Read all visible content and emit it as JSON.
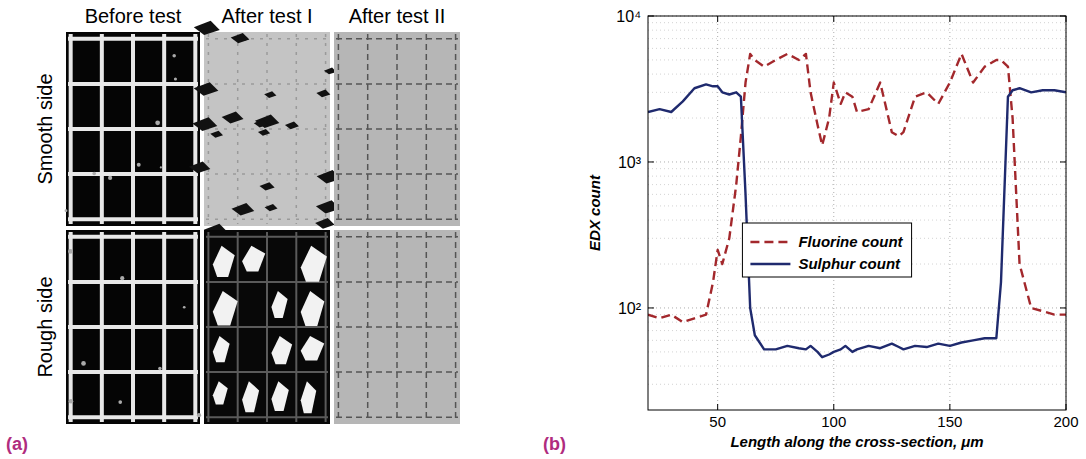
{
  "panel_a": {
    "label": "(a)",
    "columns": [
      "Before test",
      "After test I",
      "After test II"
    ],
    "rows": [
      "Smooth side",
      "Rough side"
    ]
  },
  "chart_data": {
    "type": "line",
    "panel_label": "(b)",
    "x_label": "Length along the cross-section, μm",
    "y_label": "EDX count",
    "x": [
      20,
      25,
      30,
      35,
      40,
      45,
      48,
      50,
      52,
      55,
      58,
      60,
      62,
      64,
      66,
      70,
      75,
      80,
      85,
      88,
      90,
      93,
      95,
      98,
      100,
      103,
      105,
      108,
      110,
      115,
      120,
      125,
      128,
      130,
      135,
      140,
      145,
      150,
      155,
      160,
      165,
      170,
      172,
      175,
      177,
      180,
      185,
      190,
      195,
      200
    ],
    "series": [
      {
        "name": "Fluorine count",
        "color": "#a3282c",
        "line_style": "dashed",
        "values": [
          90,
          85,
          90,
          80,
          85,
          90,
          150,
          250,
          200,
          300,
          700,
          1500,
          3500,
          5500,
          5000,
          4500,
          5000,
          5500,
          5000,
          5500,
          3000,
          1800,
          1300,
          2000,
          3500,
          2500,
          3000,
          2800,
          2200,
          2300,
          3500,
          1600,
          1500,
          1600,
          2800,
          3000,
          2500,
          3500,
          5500,
          3500,
          4500,
          5000,
          5000,
          4500,
          2000,
          200,
          100,
          95,
          90,
          90
        ]
      },
      {
        "name": "Sulphur count",
        "color": "#1f2a6e",
        "line_style": "solid",
        "values": [
          2200,
          2300,
          2200,
          2600,
          3200,
          3400,
          3300,
          3300,
          3000,
          2900,
          3000,
          2800,
          600,
          100,
          65,
          52,
          52,
          55,
          53,
          52,
          55,
          50,
          46,
          48,
          50,
          52,
          55,
          50,
          52,
          55,
          53,
          57,
          54,
          52,
          55,
          54,
          57,
          55,
          58,
          60,
          62,
          62,
          150,
          2800,
          3100,
          3200,
          3000,
          3100,
          3100,
          3000
        ]
      }
    ],
    "xlim": [
      20,
      200
    ],
    "xticks": [
      50,
      100,
      150,
      200
    ],
    "ylim": [
      20,
      10000
    ],
    "yticks": [
      {
        "value": 100,
        "label": "10²"
      },
      {
        "value": 1000,
        "label": "10³"
      },
      {
        "value": 10000,
        "label": "10⁴"
      }
    ],
    "log": "y",
    "grid": true,
    "legend": "center"
  }
}
